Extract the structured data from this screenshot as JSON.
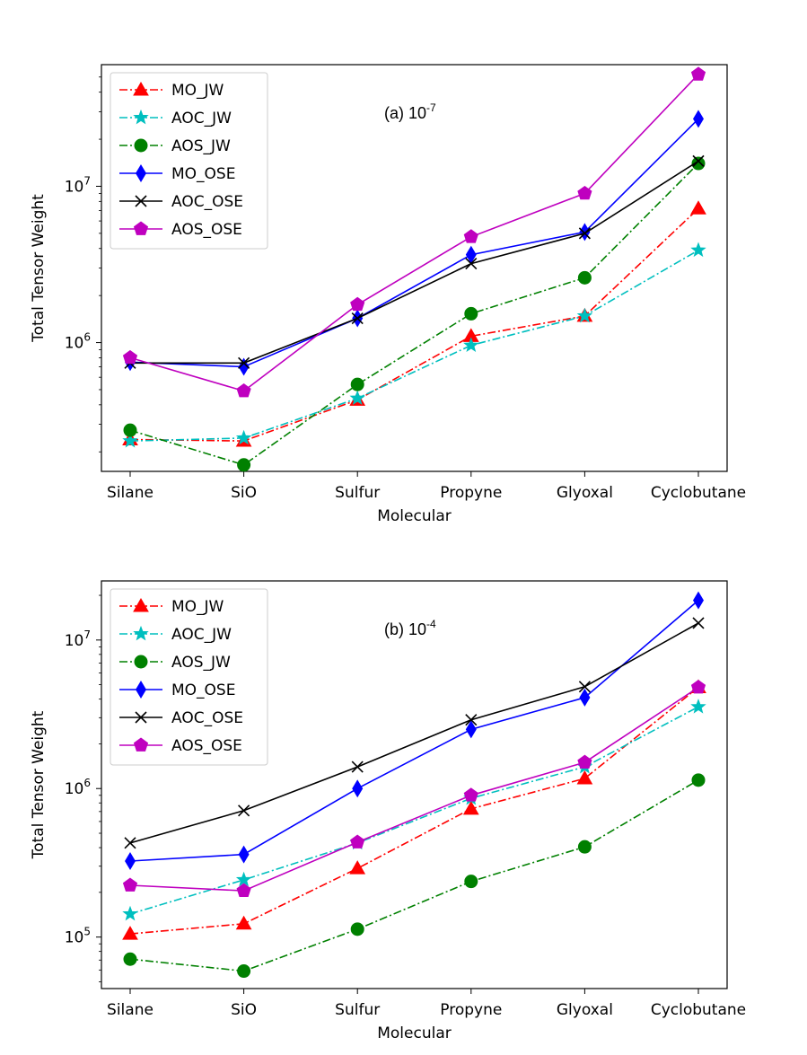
{
  "chart_data": [
    {
      "type": "line",
      "panel_label": "(a) 10",
      "panel_exponent": "-7",
      "xlabel": "Molecular",
      "ylabel": "Total Tensor Weight",
      "yscale": "log",
      "ylim": [
        150000,
        60000000
      ],
      "grid": false,
      "legend_position": "top-left",
      "categories": [
        "Silane",
        "SiO",
        "Sulfur",
        "Propyne",
        "Glyoxal",
        "Cyclobutane"
      ],
      "yticks": [
        {
          "value": 1000000,
          "base": "10",
          "exp": "6"
        },
        {
          "value": 10000000,
          "base": "10",
          "exp": "7"
        }
      ],
      "series": [
        {
          "name": "MO_JW",
          "color": "#ff0000",
          "linestyle": "dashdot",
          "marker": "triangle",
          "values": [
            240000,
            235000,
            430000,
            1100000,
            1480000,
            7200000
          ]
        },
        {
          "name": "AOC_JW",
          "color": "#00bfbf",
          "linestyle": "dashdot",
          "marker": "star",
          "values": [
            235000,
            245000,
            440000,
            960000,
            1480000,
            3900000
          ]
        },
        {
          "name": "AOS_JW",
          "color": "#008000",
          "linestyle": "dashdot",
          "marker": "circle",
          "values": [
            275000,
            165000,
            540000,
            1530000,
            2600000,
            14000000
          ]
        },
        {
          "name": "MO_OSE",
          "color": "#0000ff",
          "linestyle": "solid",
          "marker": "thin_diamond",
          "values": [
            750000,
            700000,
            1430000,
            3650000,
            5100000,
            27000000
          ]
        },
        {
          "name": "AOC_OSE",
          "color": "#000000",
          "linestyle": "solid",
          "marker": "x",
          "values": [
            740000,
            740000,
            1430000,
            3200000,
            5000000,
            14500000
          ]
        },
        {
          "name": "AOS_OSE",
          "color": "#bf00bf",
          "linestyle": "solid",
          "marker": "pentagon",
          "values": [
            800000,
            490000,
            1750000,
            4750000,
            9000000,
            52000000
          ]
        }
      ]
    },
    {
      "type": "line",
      "panel_label": "(b) 10",
      "panel_exponent": "-4",
      "xlabel": "Molecular",
      "ylabel": "Total Tensor Weight",
      "yscale": "log",
      "ylim": [
        45000,
        25000000
      ],
      "grid": false,
      "legend_position": "top-left",
      "categories": [
        "Silane",
        "SiO",
        "Sulfur",
        "Propyne",
        "Glyoxal",
        "Cyclobutane"
      ],
      "yticks": [
        {
          "value": 100000,
          "base": "10",
          "exp": "5"
        },
        {
          "value": 1000000,
          "base": "10",
          "exp": "6"
        },
        {
          "value": 10000000,
          "base": "10",
          "exp": "7"
        }
      ],
      "series": [
        {
          "name": "MO_JW",
          "color": "#ff0000",
          "linestyle": "dashdot",
          "marker": "triangle",
          "values": [
            105000,
            123000,
            290000,
            730000,
            1170000,
            4800000
          ]
        },
        {
          "name": "AOC_JW",
          "color": "#00bfbf",
          "linestyle": "dashdot",
          "marker": "star",
          "values": [
            143000,
            243000,
            430000,
            860000,
            1400000,
            3550000
          ]
        },
        {
          "name": "AOS_JW",
          "color": "#008000",
          "linestyle": "dashdot",
          "marker": "circle",
          "values": [
            71000,
            59000,
            113000,
            237000,
            405000,
            1140000
          ]
        },
        {
          "name": "MO_OSE",
          "color": "#0000ff",
          "linestyle": "solid",
          "marker": "thin_diamond",
          "values": [
            325000,
            360000,
            1000000,
            2500000,
            4100000,
            18500000
          ]
        },
        {
          "name": "AOC_OSE",
          "color": "#000000",
          "linestyle": "solid",
          "marker": "x",
          "values": [
            430000,
            710000,
            1400000,
            2900000,
            4850000,
            13000000
          ]
        },
        {
          "name": "AOS_OSE",
          "color": "#bf00bf",
          "linestyle": "solid",
          "marker": "pentagon",
          "values": [
            223000,
            205000,
            435000,
            900000,
            1500000,
            4800000
          ]
        }
      ]
    }
  ]
}
